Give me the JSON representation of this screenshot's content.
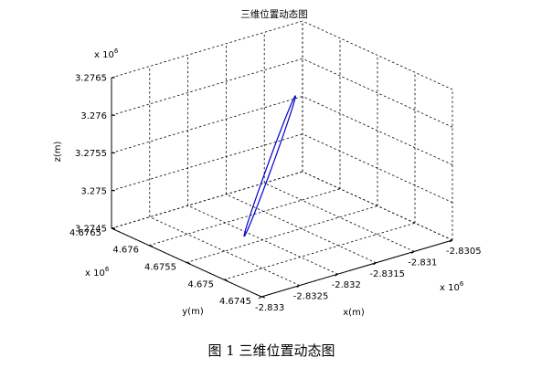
{
  "chart_data": {
    "type": "line",
    "title": "三维位置动态图",
    "caption": "图 1  三维位置动态图",
    "projection": "3d",
    "grid": true,
    "x_axis": {
      "label": "x(m)",
      "range": [
        -2.833,
        -2.8305
      ],
      "ticks": [
        -2.833,
        -2.8325,
        -2.832,
        -2.8315,
        -2.831,
        -2.8305
      ],
      "tick_labels": [
        "-2.833",
        "-2.8325",
        "-2.832",
        "-2.8315",
        "-2.831",
        "-2.8305"
      ],
      "exponent": "x 10^6"
    },
    "y_axis": {
      "label": "y(m)",
      "range": [
        4.6745,
        4.6765
      ],
      "ticks": [
        4.6745,
        4.675,
        4.6755,
        4.676,
        4.6765
      ],
      "tick_labels": [
        "4.6745",
        "4.675",
        "4.6755",
        "4.676",
        "4.6765"
      ],
      "exponent": "x 10^6"
    },
    "z_axis": {
      "label": "z(m)",
      "range": [
        3.2745,
        3.2765
      ],
      "ticks": [
        3.2745,
        3.275,
        3.2755,
        3.276,
        3.2765
      ],
      "tick_labels": [
        "3.2745",
        "3.275",
        "3.2755",
        "3.276",
        "3.2765"
      ],
      "exponent": "x 10^6"
    },
    "series": [
      {
        "color": "#0000cc",
        "trajectory": "closed elongated loop",
        "end_a": {
          "x": -2.83244,
          "y": 4.6753,
          "z": 3.27477
        },
        "end_b": {
          "x": -2.83132,
          "y": 4.67576,
          "z": 3.27609
        },
        "half_width": {
          "x": 2.4e-05,
          "y": 1.2e-05,
          "z": 8e-06
        }
      }
    ]
  }
}
